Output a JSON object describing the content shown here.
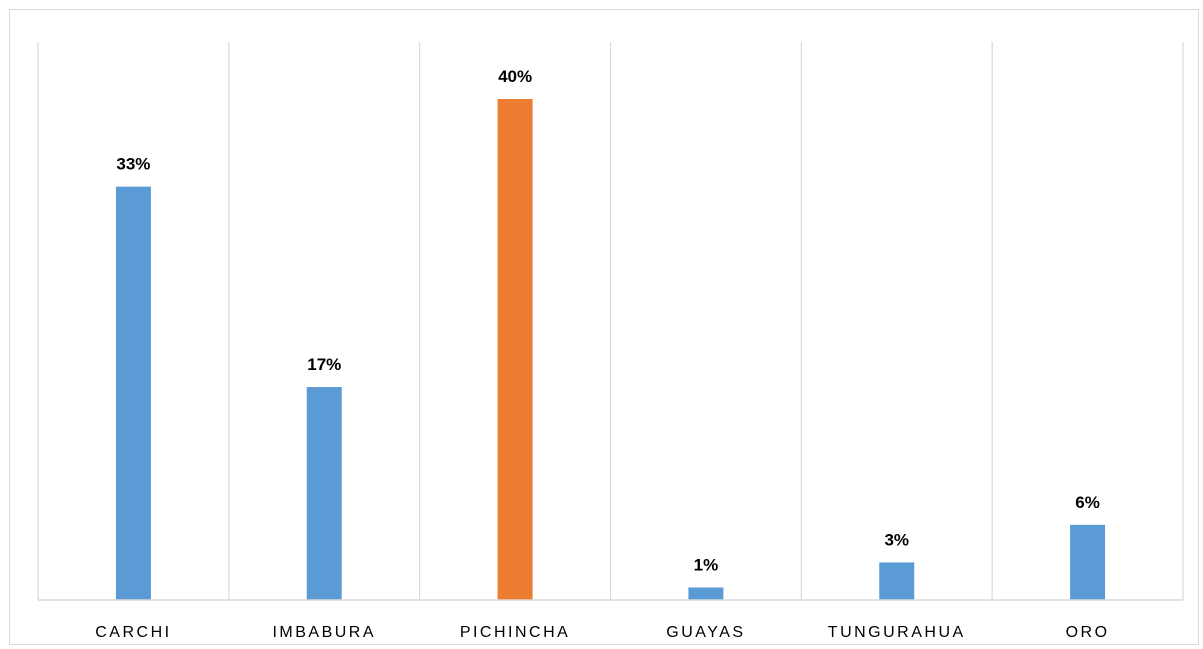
{
  "chart_data": {
    "type": "bar",
    "categories": [
      "CARCHI",
      "IMBABURA",
      "PICHINCHA",
      "GUAYAS",
      "TUNGURAHUA",
      "ORO"
    ],
    "values": [
      33,
      17,
      40,
      1,
      3,
      6
    ],
    "data_labels": [
      "33%",
      "17%",
      "40%",
      "1%",
      "3%",
      "6%"
    ],
    "unit": "%",
    "colors": [
      "#5b9bd5",
      "#5b9bd5",
      "#ed7d31",
      "#5b9bd5",
      "#5b9bd5",
      "#5b9bd5"
    ],
    "highlight_color": "#ed7d31",
    "default_color": "#5b9bd5",
    "ylim": [
      0,
      40
    ],
    "gridlines": "vertical category separators",
    "legend": "none",
    "title": "",
    "xlabel": "",
    "ylabel": ""
  }
}
